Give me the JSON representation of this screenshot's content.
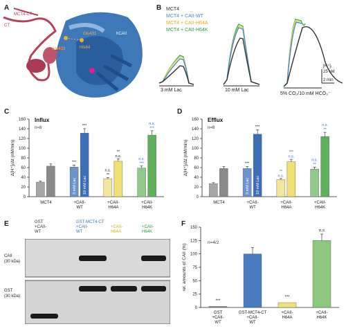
{
  "panels": {
    "A": "A",
    "B": "B",
    "C": "C",
    "D": "D",
    "E": "E",
    "F": "F"
  },
  "panelA": {
    "mct4_ct": "MCT4-CT",
    "ct": "CT",
    "glu431": "Glu431",
    "glu433": "Glu433",
    "his64": "His64",
    "hcaii": "hCAII"
  },
  "panelB": {
    "legend": [
      "MCT4",
      "MCT4 + CAII-WT",
      "MCT4 + CAII-H64A",
      "MCT4 + CAII-H64K"
    ],
    "legend_colors": [
      "#333333",
      "#4a86c8",
      "#f2d648",
      "#3fa85a"
    ],
    "scale_conc": "[H⁺]ᵢ",
    "scale_val": "25 nM",
    "scale_time": "2 min",
    "label_lac3": "3 mM Lac",
    "label_lac10": "10 mM Lac",
    "label_co2": "5% CO₂/10 mM HCO₃⁻"
  },
  "chart_data": [
    {
      "panel": "C",
      "type": "bar",
      "title": "Influx",
      "n": "n=8",
      "ylabel": "Δ[H⁺]ᵢ/Δt (nM/min)",
      "ylim": [
        0,
        160
      ],
      "yticks": [
        "0",
        "20",
        "40",
        "60",
        "80",
        "100",
        "120",
        "140",
        "160"
      ],
      "categories": [
        "MCT4",
        "+CAII-WT",
        "+CAII-H64A",
        "+CAII-H64K"
      ],
      "bar_labels": [
        "3 mM Lac",
        "10 mM Lac"
      ],
      "values": [
        [
          30,
          63
        ],
        [
          61,
          131
        ],
        [
          37,
          73
        ],
        [
          59,
          127
        ]
      ],
      "colors": [
        [
          "#a7a7a7",
          "#8a8a8a"
        ],
        [
          "#6b93cc",
          "#3d6fb8"
        ],
        [
          "#f2e79a",
          "#f1e071"
        ],
        [
          "#90c98a",
          "#5fb05a"
        ]
      ],
      "annotations": [
        [
          "",
          ""
        ],
        [
          "***",
          "***"
        ],
        [
          "n.s.\n**",
          "**\nn.s."
        ],
        [
          "n.s.\n***",
          "n.s.\n***"
        ]
      ],
      "annotation_colors": [
        [
          "",
          ""
        ],
        [
          "#111111",
          "#111111"
        ],
        [
          "#111111",
          "#111111"
        ],
        [
          "#3d6fb8",
          "#3d6fb8"
        ]
      ]
    },
    {
      "panel": "D",
      "type": "bar",
      "title": "Efflux",
      "n": "n=8",
      "ylabel": "Δ[H⁺]ᵢ/Δt (nM/min)",
      "ylim": [
        0,
        160
      ],
      "yticks": [
        "0",
        "20",
        "40",
        "60",
        "80",
        "100",
        "120",
        "140",
        "160"
      ],
      "categories": [
        "MCT4",
        "+CAII-WT",
        "+CAII-H64A",
        "+CAII-H64K"
      ],
      "bar_labels": [
        "3 mM Lac",
        "10 mM Lac"
      ],
      "values": [
        [
          27,
          58
        ],
        [
          58,
          129
        ],
        [
          35,
          72
        ],
        [
          57,
          124
        ]
      ],
      "colors": [
        [
          "#a7a7a7",
          "#8a8a8a"
        ],
        [
          "#6b93cc",
          "#3d6fb8"
        ],
        [
          "#f2e79a",
          "#f1e071"
        ],
        [
          "#90c98a",
          "#5fb05a"
        ]
      ],
      "annotations": [
        [
          "",
          ""
        ],
        [
          "***",
          "***"
        ],
        [
          "**\nn.s.",
          "***\nn.s."
        ],
        [
          "n.s.\n**",
          "n.s.\n**"
        ]
      ],
      "annotation_colors": [
        [
          "",
          ""
        ],
        [
          "#111111",
          "#111111"
        ],
        [
          "#3d6fb8",
          "#3d6fb8"
        ],
        [
          "#3d6fb8",
          "#3d6fb8"
        ]
      ]
    },
    {
      "panel": "F",
      "type": "bar",
      "n": "n=4/2",
      "ylabel": "rel. amounts of CAII (%)",
      "ylim": [
        0,
        150
      ],
      "yticks": [
        "0",
        "25",
        "50",
        "75",
        "100",
        "125",
        "150"
      ],
      "categories": [
        "GST\n+CAII-\nWT",
        "GST-MCT4-CT\n+CAII-\nWT",
        "+CAII-\nH64A",
        "+CAII-\nH64K"
      ],
      "values": [
        2,
        100,
        9,
        125
      ],
      "colors": [
        "#888888",
        "#4a7ac0",
        "#f2e079",
        "#8cc97f"
      ],
      "annotations": [
        "***",
        "",
        "***",
        "n.s"
      ]
    }
  ],
  "panelE": {
    "headers": [
      "GST\n+CAII-\nWT",
      "GST-MCT4-CT\n+CAII-\nWT",
      "+CAII-\nH64A",
      "+CAII-\nH64K"
    ],
    "header_colors": [
      "#333333",
      "#3d6fb8",
      "#d9b400",
      "#2f9a48"
    ],
    "row1": "CAII\n(30 kDa)",
    "row2": "GST\n(30 kDa)"
  }
}
